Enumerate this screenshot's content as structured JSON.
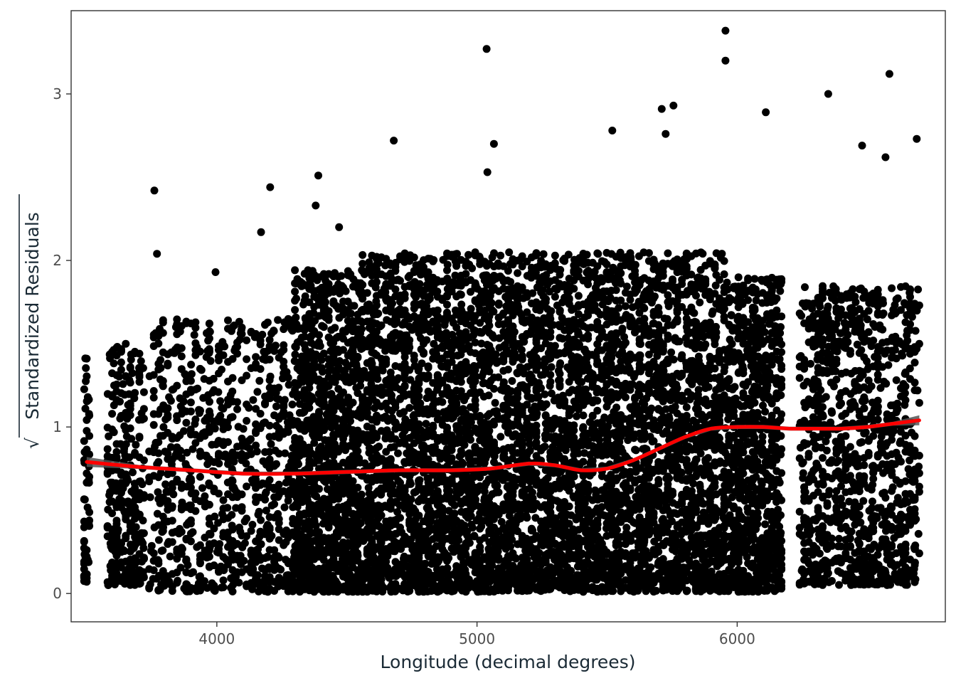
{
  "chart_data": {
    "type": "scatter",
    "title": "",
    "xlabel": "Longitude (decimal degrees)",
    "ylabel": "Standardized  Residuals",
    "ylabel_prefix": "√",
    "xlim": [
      3440,
      6800
    ],
    "ylim": [
      -0.17,
      3.5
    ],
    "x_ticks": [
      4000,
      5000,
      6000
    ],
    "y_ticks": [
      0,
      1,
      2,
      3
    ],
    "grid": false,
    "legend": "none",
    "point_color": "#000000",
    "smooth_color": "#ff0000",
    "band_color": "#555555",
    "outliers": [
      [
        5037,
        3.27
      ],
      [
        5955,
        3.38
      ],
      [
        5955,
        3.2
      ],
      [
        6585,
        3.12
      ],
      [
        6350,
        3.0
      ],
      [
        6690,
        2.73
      ],
      [
        6110,
        2.89
      ],
      [
        5755,
        2.93
      ],
      [
        5710,
        2.91
      ],
      [
        5520,
        2.78
      ],
      [
        5725,
        2.76
      ],
      [
        4680,
        2.72
      ],
      [
        5065,
        2.7
      ],
      [
        4470,
        2.2
      ],
      [
        3760,
        2.42
      ],
      [
        4205,
        2.44
      ],
      [
        4390,
        2.51
      ],
      [
        5040,
        2.53
      ],
      [
        6570,
        2.62
      ],
      [
        6480,
        2.69
      ],
      [
        4380,
        2.33
      ],
      [
        3770,
        2.04
      ],
      [
        4170,
        2.17
      ],
      [
        3995,
        1.93
      ]
    ],
    "clusters": [
      {
        "x": [
          3490,
          3510
        ],
        "y": [
          0.05,
          1.45
        ],
        "n": 60
      },
      {
        "x": [
          3580,
          3720
        ],
        "y": [
          0.05,
          1.5
        ],
        "n": 320
      },
      {
        "x": [
          3740,
          4310
        ],
        "y": [
          0.01,
          1.65
        ],
        "n": 900
      },
      {
        "x": [
          4300,
          4560
        ],
        "y": [
          0.01,
          1.95
        ],
        "n": 1100
      },
      {
        "x": [
          4560,
          5950
        ],
        "y": [
          0.01,
          2.05
        ],
        "n": 5200
      },
      {
        "x": [
          5950,
          6170
        ],
        "y": [
          0.01,
          1.9
        ],
        "n": 900
      },
      {
        "x": [
          6240,
          6700
        ],
        "y": [
          0.05,
          1.85
        ],
        "n": 1100
      }
    ],
    "smooth_x": [
      3500,
      3700,
      3900,
      4100,
      4300,
      4500,
      4700,
      4900,
      5050,
      5200,
      5300,
      5400,
      5500,
      5600,
      5700,
      5800,
      5900,
      6000,
      6100,
      6200,
      6300,
      6400,
      6500,
      6600,
      6700
    ],
    "smooth_y": [
      0.79,
      0.76,
      0.74,
      0.72,
      0.72,
      0.73,
      0.74,
      0.74,
      0.75,
      0.78,
      0.77,
      0.74,
      0.75,
      0.8,
      0.87,
      0.94,
      0.99,
      1.0,
      1.0,
      0.99,
      0.99,
      0.99,
      1.0,
      1.02,
      1.04
    ]
  }
}
